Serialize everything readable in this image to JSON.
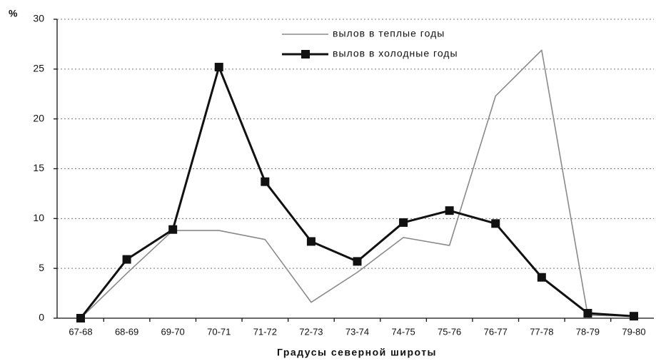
{
  "chart_data": {
    "type": "line",
    "y_label": "%",
    "x_label": "Градусы северной широты",
    "categories": [
      "67-68",
      "68-69",
      "69-70",
      "70-71",
      "71-72",
      "72-73",
      "73-74",
      "74-75",
      "75-76",
      "76-77",
      "77-78",
      "78-79",
      "79-80"
    ],
    "series": [
      {
        "name": "вылов в теплые годы",
        "color": "#8a8a8a",
        "values": [
          0,
          4.5,
          8.8,
          8.8,
          7.9,
          1.6,
          4.6,
          8.1,
          7.3,
          22.3,
          26.9,
          0.3,
          0.2
        ]
      },
      {
        "name": "вылов в холодные годы",
        "color": "#111111",
        "values": [
          0,
          5.9,
          8.9,
          25.2,
          13.7,
          7.7,
          5.7,
          9.6,
          10.8,
          9.5,
          4.1,
          0.5,
          0.2
        ]
      }
    ],
    "ylim": [
      0,
      30
    ],
    "yticks": [
      0,
      5,
      10,
      15,
      20,
      25,
      30
    ],
    "grid": true
  }
}
